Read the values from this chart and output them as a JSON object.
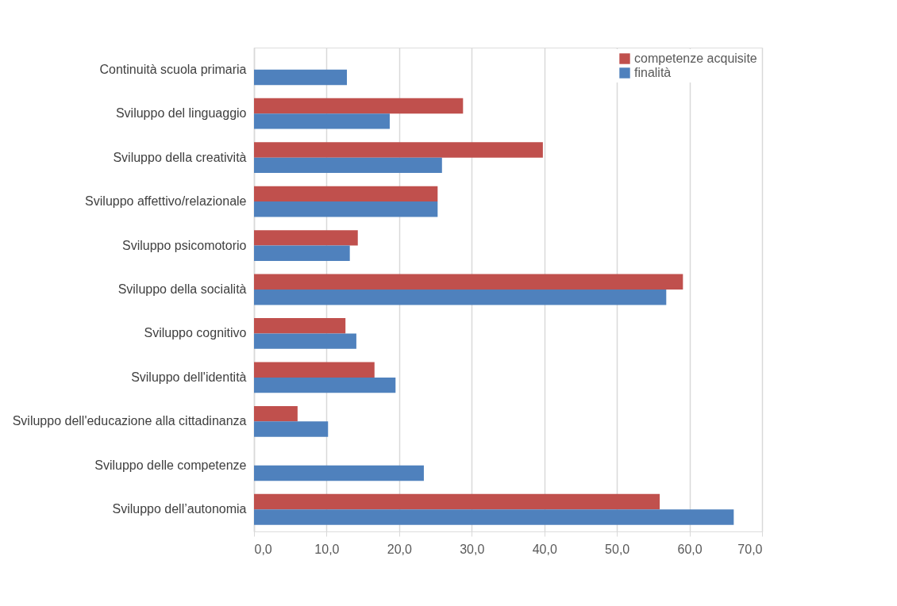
{
  "chart_data": {
    "type": "bar",
    "orientation": "horizontal",
    "categories": [
      "Continuità scuola primaria",
      "Sviluppo del linguaggio",
      "Sviluppo della creatività",
      "Sviluppo affettivo/relazionale",
      "Sviluppo psicomotorio",
      "Sviluppo della socialità",
      "Sviluppo cognitivo",
      "Sviluppo dell'identità",
      "Sviluppo dell'educazione alla cittadinanza",
      "Sviluppo delle competenze",
      "Sviluppo dell’autonomia"
    ],
    "series": [
      {
        "name": "competenze acquisite",
        "color": "#c0504d",
        "values": [
          null,
          28.8,
          39.8,
          25.3,
          14.3,
          59.1,
          12.6,
          16.6,
          6.0,
          null,
          55.9
        ]
      },
      {
        "name": "finalità",
        "color": "#4f81bd",
        "values": [
          12.8,
          18.7,
          25.9,
          25.3,
          13.2,
          56.8,
          14.1,
          19.5,
          10.2,
          23.4,
          66.1
        ]
      }
    ],
    "xlim": [
      0,
      70
    ],
    "xticks": [
      {
        "value": 0,
        "label": "0,0"
      },
      {
        "value": 10,
        "label": "10,0"
      },
      {
        "value": 20,
        "label": "20,0"
      },
      {
        "value": 30,
        "label": "30,0"
      },
      {
        "value": 40,
        "label": "40,0"
      },
      {
        "value": 50,
        "label": "50,0"
      },
      {
        "value": 60,
        "label": "60,0"
      },
      {
        "value": 70,
        "label": "70,0"
      }
    ],
    "grid": "x",
    "legend": "top right"
  }
}
